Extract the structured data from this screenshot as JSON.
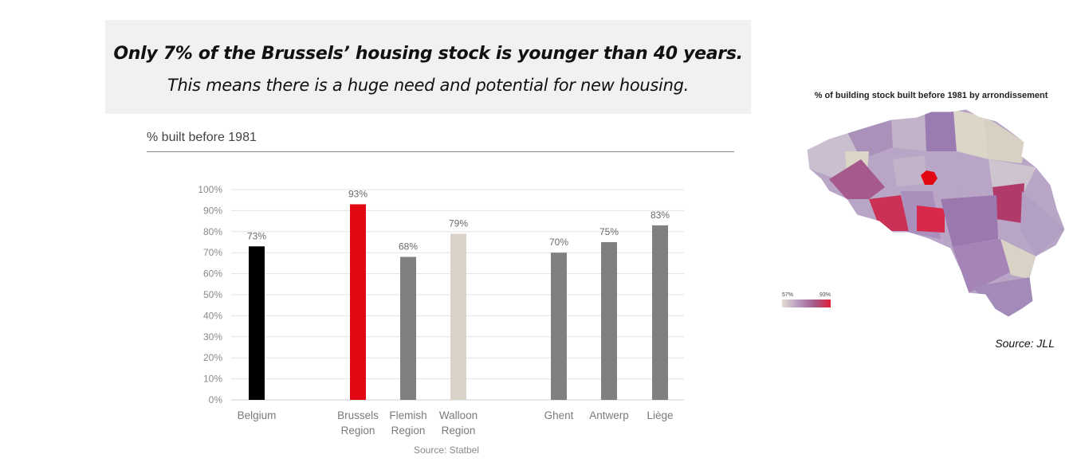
{
  "banner": {
    "headline": "Only 7% of the Brussels’ housing stock is younger than 40 years.",
    "subline": "This means there is a huge need and potential for new housing."
  },
  "chart_data": {
    "type": "bar",
    "title": "% built before 1981",
    "categories": [
      [
        "Belgium"
      ],
      [
        "Brussels",
        "Region"
      ],
      [
        "Flemish",
        "Region"
      ],
      [
        "Walloon",
        "Region"
      ],
      [
        "Ghent"
      ],
      [
        "Antwerp"
      ],
      [
        "Liège"
      ]
    ],
    "values": [
      73,
      93,
      68,
      79,
      70,
      75,
      83
    ],
    "value_labels": [
      "73%",
      "93%",
      "68%",
      "79%",
      "70%",
      "75%",
      "83%"
    ],
    "bar_colors": [
      "#000000",
      "#e30613",
      "#808080",
      "#d9d4c7",
      "#808080",
      "#808080",
      "#808080"
    ],
    "ylim": [
      0,
      100
    ],
    "yticks": [
      "0%",
      "10%",
      "20%",
      "30%",
      "40%",
      "50%",
      "60%",
      "70%",
      "80%",
      "90%",
      "100%"
    ],
    "grid": true,
    "source": "Source: Statbel"
  },
  "map": {
    "title": "% of building stock built before 1981 by arrondissement",
    "legend_min": "57%",
    "legend_max": "93%",
    "source": "Source: JLL",
    "colors": [
      "#e3ddd0",
      "#c8bccd",
      "#b79ac0",
      "#a37fb0",
      "#a35a8a",
      "#e02038"
    ]
  }
}
